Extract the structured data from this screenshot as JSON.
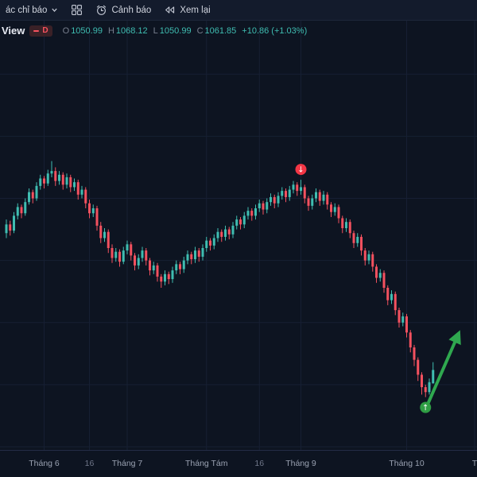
{
  "toolbar": {
    "indicators_label": "ác chỉ báo",
    "alerts_label": "Cảnh báo",
    "replay_label": "Xem lại"
  },
  "legend": {
    "symbol_suffix": "View",
    "timeframe_badge": "D",
    "ohlc": {
      "o_label": "O",
      "o_value": "1050.99",
      "h_label": "H",
      "h_value": "1068.12",
      "l_label": "L",
      "l_value": "1050.99",
      "c_label": "C",
      "c_value": "1061.85",
      "change": "+10.86 (+1.03%)"
    }
  },
  "colors": {
    "background": "#0d1421",
    "toolbar_bg": "#131b2c",
    "up": "#3fbdb1",
    "down": "#f4515f",
    "grid": "#161f33",
    "axis_text": "#9aa2b2",
    "axis_text_minor": "#6f7689",
    "value_text": "#3fbdb1",
    "label_text": "#787f8e",
    "marker_down": "#f23645",
    "marker_up": "#2f9e44",
    "arrow": "#2fa84f"
  },
  "chart_data": {
    "type": "candlestick",
    "timeframe": "D",
    "ylim": [
      1000,
      1320
    ],
    "h_gridlines": [
      1000,
      1050,
      1100,
      1150,
      1200,
      1250,
      1300
    ],
    "x_axis_labels": [
      {
        "label": "Tháng 6",
        "index": 10,
        "minor": false
      },
      {
        "label": "16",
        "index": 22,
        "minor": true
      },
      {
        "label": "Tháng 7",
        "index": 32,
        "minor": false
      },
      {
        "label": "Tháng Tám",
        "index": 53,
        "minor": false
      },
      {
        "label": "16",
        "index": 67,
        "minor": true
      },
      {
        "label": "Tháng 9",
        "index": 78,
        "minor": false
      },
      {
        "label": "Tháng 10",
        "index": 106,
        "minor": false
      },
      {
        "label": "T",
        "index": 124,
        "minor": false
      }
    ],
    "candles": [
      [
        1172,
        1183,
        1168,
        1179
      ],
      [
        1179,
        1182,
        1170,
        1174
      ],
      [
        1174,
        1189,
        1172,
        1186
      ],
      [
        1186,
        1196,
        1183,
        1193
      ],
      [
        1193,
        1195,
        1184,
        1188
      ],
      [
        1188,
        1200,
        1186,
        1197
      ],
      [
        1197,
        1208,
        1195,
        1205
      ],
      [
        1205,
        1207,
        1196,
        1200
      ],
      [
        1200,
        1213,
        1198,
        1210
      ],
      [
        1210,
        1219,
        1207,
        1216
      ],
      [
        1216,
        1218,
        1208,
        1212
      ],
      [
        1212,
        1223,
        1210,
        1220
      ],
      [
        1220,
        1230,
        1217,
        1222
      ],
      [
        1222,
        1225,
        1210,
        1214
      ],
      [
        1214,
        1222,
        1211,
        1219
      ],
      [
        1219,
        1221,
        1207,
        1211
      ],
      [
        1211,
        1220,
        1208,
        1217
      ],
      [
        1217,
        1219,
        1205,
        1209
      ],
      [
        1209,
        1216,
        1206,
        1213
      ],
      [
        1213,
        1215,
        1199,
        1203
      ],
      [
        1203,
        1210,
        1200,
        1207
      ],
      [
        1207,
        1209,
        1192,
        1196
      ],
      [
        1196,
        1199,
        1184,
        1188
      ],
      [
        1188,
        1195,
        1185,
        1192
      ],
      [
        1192,
        1194,
        1174,
        1178
      ],
      [
        1178,
        1181,
        1164,
        1168
      ],
      [
        1168,
        1176,
        1165,
        1173
      ],
      [
        1173,
        1175,
        1156,
        1160
      ],
      [
        1160,
        1163,
        1148,
        1152
      ],
      [
        1152,
        1160,
        1149,
        1157
      ],
      [
        1157,
        1159,
        1145,
        1149
      ],
      [
        1149,
        1161,
        1147,
        1158
      ],
      [
        1158,
        1166,
        1155,
        1163
      ],
      [
        1163,
        1165,
        1150,
        1154
      ],
      [
        1154,
        1156,
        1142,
        1146
      ],
      [
        1146,
        1155,
        1143,
        1152
      ],
      [
        1152,
        1161,
        1149,
        1158
      ],
      [
        1158,
        1160,
        1146,
        1150
      ],
      [
        1150,
        1152,
        1138,
        1142
      ],
      [
        1142,
        1149,
        1139,
        1146
      ],
      [
        1146,
        1148,
        1133,
        1137
      ],
      [
        1137,
        1139,
        1128,
        1133
      ],
      [
        1133,
        1142,
        1130,
        1139
      ],
      [
        1139,
        1141,
        1131,
        1135
      ],
      [
        1135,
        1145,
        1132,
        1142
      ],
      [
        1142,
        1150,
        1139,
        1147
      ],
      [
        1147,
        1149,
        1139,
        1143
      ],
      [
        1143,
        1153,
        1140,
        1150
      ],
      [
        1150,
        1158,
        1147,
        1155
      ],
      [
        1155,
        1157,
        1147,
        1151
      ],
      [
        1151,
        1161,
        1148,
        1158
      ],
      [
        1158,
        1160,
        1149,
        1153
      ],
      [
        1153,
        1163,
        1150,
        1160
      ],
      [
        1160,
        1169,
        1157,
        1166
      ],
      [
        1166,
        1168,
        1158,
        1162
      ],
      [
        1162,
        1171,
        1159,
        1168
      ],
      [
        1168,
        1176,
        1165,
        1173
      ],
      [
        1173,
        1175,
        1165,
        1169
      ],
      [
        1169,
        1178,
        1166,
        1175
      ],
      [
        1175,
        1177,
        1167,
        1171
      ],
      [
        1171,
        1181,
        1168,
        1178
      ],
      [
        1178,
        1186,
        1175,
        1183
      ],
      [
        1183,
        1185,
        1175,
        1179
      ],
      [
        1179,
        1189,
        1176,
        1186
      ],
      [
        1186,
        1193,
        1183,
        1190
      ],
      [
        1190,
        1192,
        1182,
        1186
      ],
      [
        1186,
        1195,
        1183,
        1192
      ],
      [
        1192,
        1199,
        1189,
        1196
      ],
      [
        1196,
        1198,
        1187,
        1191
      ],
      [
        1191,
        1200,
        1188,
        1197
      ],
      [
        1197,
        1204,
        1194,
        1201
      ],
      [
        1201,
        1203,
        1192,
        1196
      ],
      [
        1196,
        1205,
        1193,
        1202
      ],
      [
        1202,
        1209,
        1199,
        1206
      ],
      [
        1206,
        1208,
        1197,
        1201
      ],
      [
        1201,
        1210,
        1198,
        1207
      ],
      [
        1207,
        1214,
        1204,
        1211
      ],
      [
        1211,
        1213,
        1202,
        1206
      ],
      [
        1206,
        1215,
        1203,
        1209
      ],
      [
        1209,
        1211,
        1196,
        1200
      ],
      [
        1200,
        1202,
        1190,
        1194
      ],
      [
        1194,
        1203,
        1191,
        1200
      ],
      [
        1200,
        1208,
        1197,
        1205
      ],
      [
        1205,
        1207,
        1194,
        1198
      ],
      [
        1198,
        1206,
        1195,
        1203
      ],
      [
        1203,
        1205,
        1191,
        1195
      ],
      [
        1195,
        1197,
        1185,
        1189
      ],
      [
        1189,
        1196,
        1186,
        1193
      ],
      [
        1193,
        1195,
        1180,
        1184
      ],
      [
        1184,
        1186,
        1172,
        1176
      ],
      [
        1176,
        1184,
        1173,
        1181
      ],
      [
        1181,
        1183,
        1168,
        1172
      ],
      [
        1172,
        1174,
        1160,
        1164
      ],
      [
        1164,
        1172,
        1161,
        1169
      ],
      [
        1169,
        1171,
        1154,
        1158
      ],
      [
        1158,
        1160,
        1146,
        1150
      ],
      [
        1150,
        1158,
        1147,
        1155
      ],
      [
        1155,
        1157,
        1141,
        1145
      ],
      [
        1145,
        1147,
        1132,
        1136
      ],
      [
        1136,
        1143,
        1133,
        1140
      ],
      [
        1140,
        1142,
        1124,
        1128
      ],
      [
        1128,
        1130,
        1114,
        1118
      ],
      [
        1118,
        1126,
        1115,
        1123
      ],
      [
        1123,
        1125,
        1106,
        1110
      ],
      [
        1110,
        1112,
        1096,
        1100
      ],
      [
        1100,
        1108,
        1097,
        1105
      ],
      [
        1105,
        1107,
        1088,
        1092
      ],
      [
        1092,
        1094,
        1076,
        1080
      ],
      [
        1080,
        1082,
        1065,
        1070
      ],
      [
        1070,
        1072,
        1053,
        1058
      ],
      [
        1058,
        1060,
        1042,
        1048
      ],
      [
        1048,
        1050,
        1040,
        1044
      ],
      [
        1044,
        1055,
        1042,
        1052
      ],
      [
        1050.99,
        1068.12,
        1050.99,
        1061.85
      ]
    ],
    "markers": [
      {
        "type": "down",
        "index": 78,
        "glyph": "↓",
        "color": "#f23645"
      },
      {
        "type": "up",
        "index": 111,
        "glyph": "↑",
        "color": "#2f9e44"
      }
    ],
    "drawings": [
      {
        "type": "arrow",
        "from": {
          "index": 111.4,
          "price": 1033
        },
        "to": {
          "index": 119.6,
          "price": 1090
        },
        "color": "#2fa84f"
      }
    ]
  }
}
